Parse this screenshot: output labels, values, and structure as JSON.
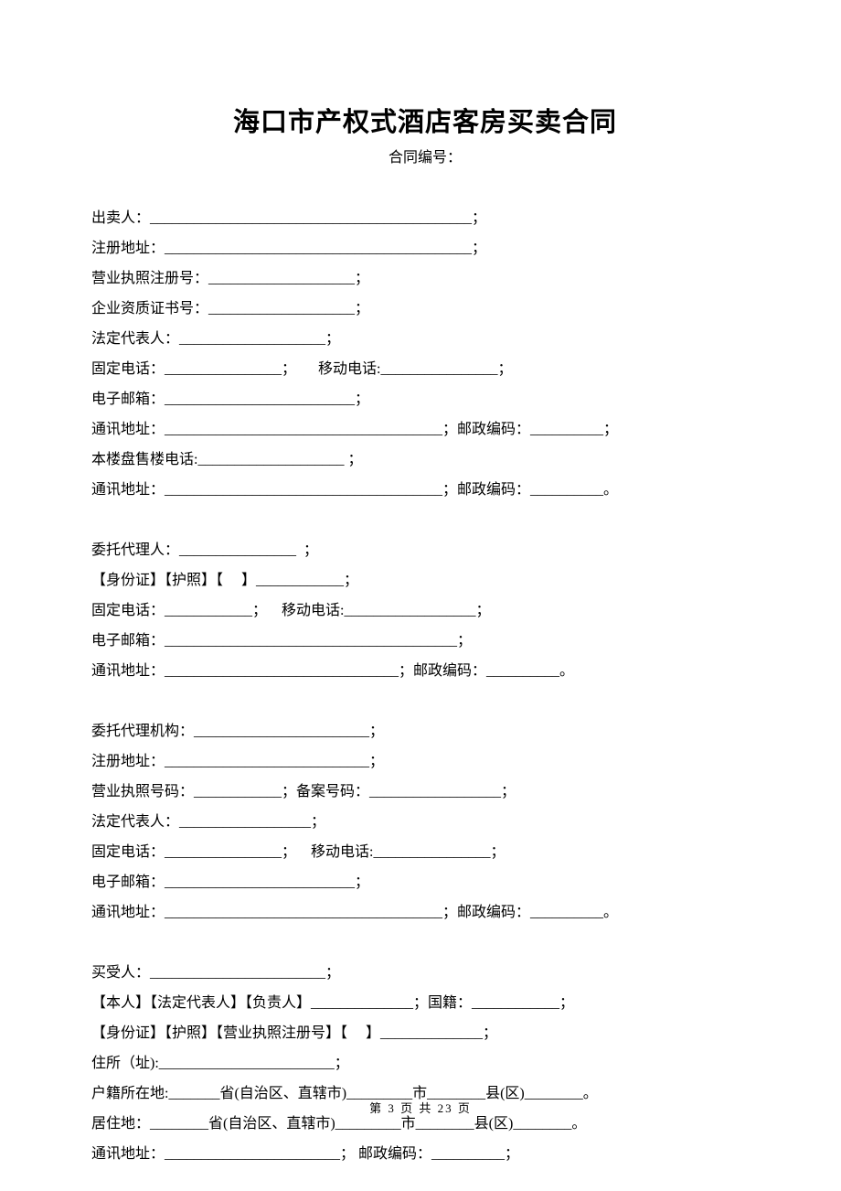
{
  "title": "海口市产权式酒店客房买卖合同",
  "subtitle": "合同编号：",
  "footer": "第 3 页 共 23 页",
  "sections": {
    "seller": {
      "l1": "出卖人：____________________________________________；",
      "l2": "注册地址：__________________________________________；",
      "l3": "营业执照注册号：____________________；",
      "l4": "企业资质证书号：____________________；",
      "l5": "法定代表人：____________________；",
      "l6": "固定电话：________________；      移动电话:________________；",
      "l7": "电子邮箱：__________________________；",
      "l8": "通讯地址：______________________________________；邮政编码：__________；",
      "l9": "本楼盘售楼电话:____________________ ；",
      "l10": "通讯地址：______________________________________；邮政编码：__________。"
    },
    "agent_person": {
      "l1": "委托代理人：________________  ；",
      "l2": "【身份证】【护照】【     】____________；",
      "l3": "固定电话：____________；    移动电话:__________________；",
      "l4": "电子邮箱：________________________________________；",
      "l5": "通讯地址：________________________________；邮政编码：__________。"
    },
    "agent_org": {
      "l1": "委托代理机构：________________________；",
      "l2": "注册地址：____________________________；",
      "l3": "营业执照号码：____________；备案号码：__________________；",
      "l4": "法定代表人：__________________；",
      "l5": "固定电话：________________；    移动电话:________________；",
      "l6": "电子邮箱：__________________________；",
      "l7": "通讯地址：______________________________________；邮政编码：__________。"
    },
    "buyer": {
      "l1": "买受人：________________________；",
      "l2": "【本人】【法定代表人】【负责人】______________；国籍：____________；",
      "l3": "【身份证】【护照】【营业执照注册号】【     】______________；",
      "l4": "住所（址):________________________；",
      "l5": "户籍所在地:_______省(自治区、直辖市)_________市________县(区)________。",
      "l6": "居住地：________省(自治区、直辖市)_________市________县(区)________。",
      "l7": "通讯地址：________________________； 邮政编码：__________；"
    }
  }
}
